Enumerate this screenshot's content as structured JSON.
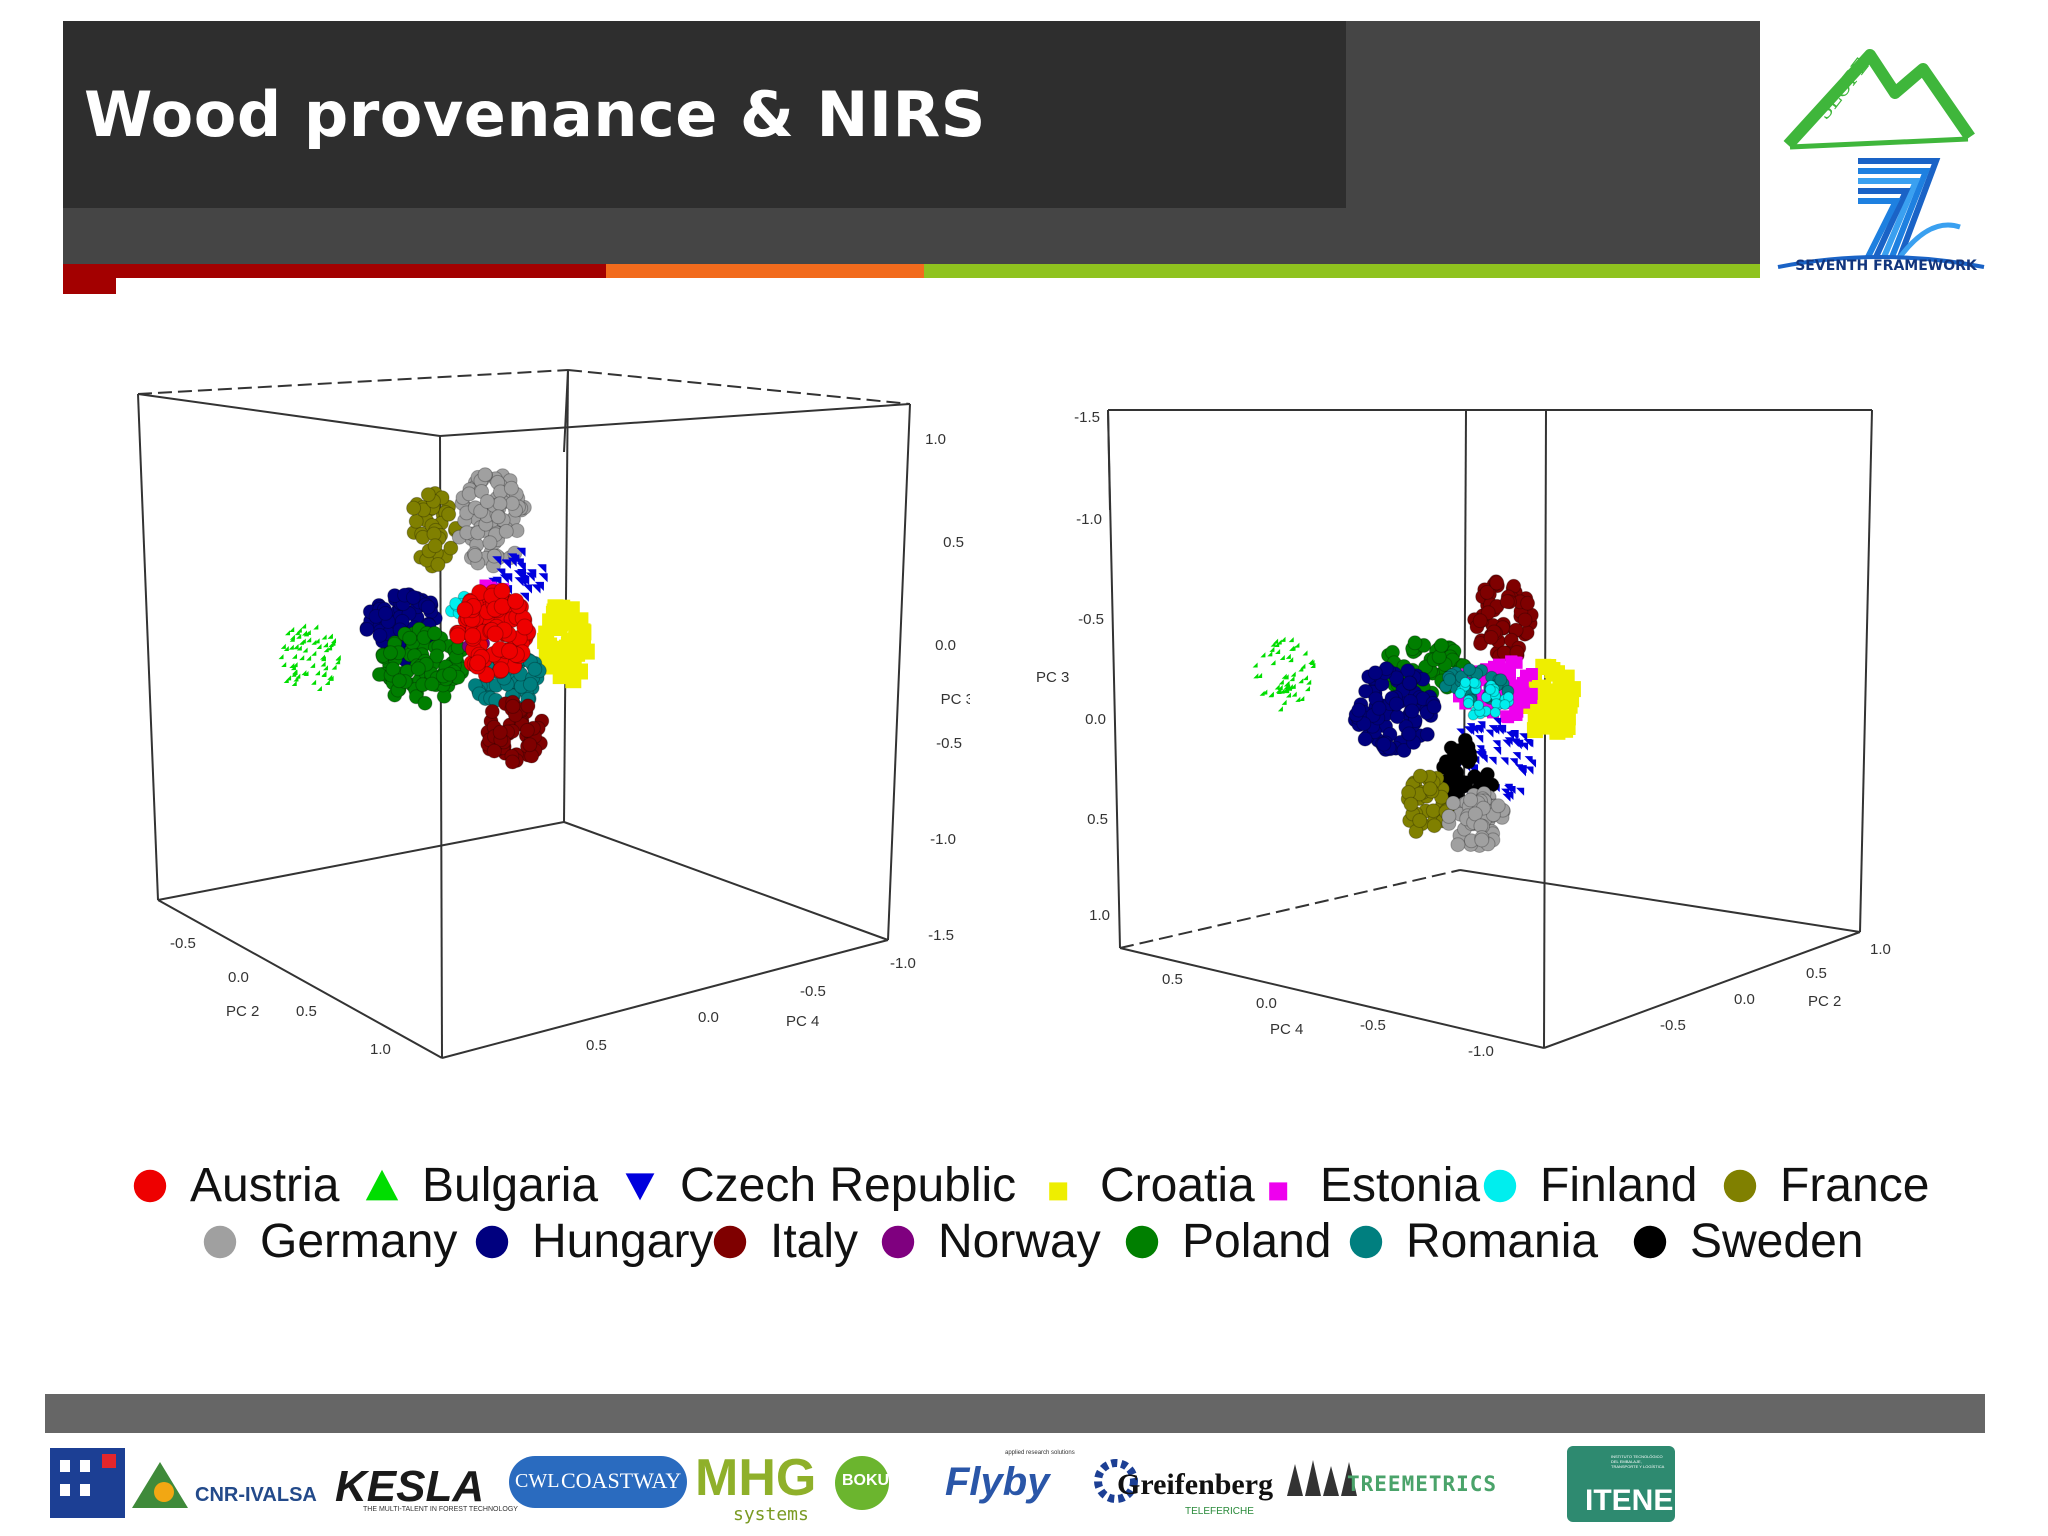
{
  "slide": {
    "title": "Wood provenance & NIRS"
  },
  "header": {
    "stripe_colors": [
      "#a30000",
      "#f26b1d",
      "#8fc31f"
    ],
    "logos": {
      "slope_text": "SLOPE",
      "fp7_text": "SEVENTH FRAMEWORK"
    }
  },
  "plot_left": {
    "axis_vertical": {
      "name": "PC 3",
      "ticks": [
        "1.0",
        "0.5",
        "0.0",
        "-0.5",
        "-1.0",
        "-1.5"
      ]
    },
    "axis_front": {
      "name": "PC 4",
      "ticks": [
        "-1.0",
        "-0.5",
        "0.0",
        "0.5"
      ]
    },
    "axis_side": {
      "name": "PC 2",
      "ticks": [
        "-0.5",
        "0.0",
        "0.5",
        "1.0"
      ]
    }
  },
  "plot_right": {
    "axis_vertical": {
      "name": "PC 3",
      "ticks": [
        "-1.5",
        "-1.0",
        "-0.5",
        "0.0",
        "0.5",
        "1.0"
      ]
    },
    "axis_front": {
      "name": "PC 4",
      "ticks": [
        "0.5",
        "0.0",
        "-0.5",
        "-1.0"
      ]
    },
    "axis_side": {
      "name": "PC 2",
      "ticks": [
        "1.0",
        "0.5",
        "0.0",
        "-0.5"
      ]
    }
  },
  "legend": {
    "row1": [
      {
        "label": "Austria",
        "marker": "circle",
        "color": "#ee0000"
      },
      {
        "label": "Bulgaria",
        "marker": "triangle-up",
        "color": "#00dd00"
      },
      {
        "label": "Czech Republic",
        "marker": "triangle-down",
        "color": "#0000dd"
      },
      {
        "label": "Croatia",
        "marker": "square-small",
        "color": "#eeee00"
      },
      {
        "label": "Estonia",
        "marker": "square-small",
        "color": "#ee00ee"
      },
      {
        "label": "Finland",
        "marker": "circle",
        "color": "#00eeee"
      },
      {
        "label": "France",
        "marker": "circle",
        "color": "#808000"
      }
    ],
    "row2": [
      {
        "label": "Germany",
        "marker": "circle",
        "color": "#a0a0a0"
      },
      {
        "label": "Hungary",
        "marker": "circle",
        "color": "#00007f"
      },
      {
        "label": "Italy",
        "marker": "circle",
        "color": "#7f0000"
      },
      {
        "label": "Norway",
        "marker": "circle",
        "color": "#7f007f"
      },
      {
        "label": "Poland",
        "marker": "circle",
        "color": "#007f00"
      },
      {
        "label": "Romania",
        "marker": "circle",
        "color": "#007f7f"
      },
      {
        "label": "Sweden",
        "marker": "circle",
        "color": "#000000"
      }
    ]
  },
  "footer": {
    "sponsors": [
      "CNR-IVALSA",
      "KESLA",
      "THE MULTI-TALENT IN FOREST TECHNOLOGY",
      "CWL",
      "COASTWAY",
      "MHG",
      "systems",
      "BOKU",
      "Flyby",
      "applied research solutions",
      "Greifenberg",
      "TELEFERICHE",
      "TREEMETRICS",
      "ITENE",
      "INSTITUTO TECNOLÓGICO DEL EMBALAJE, TRANSPORTE Y LOGÍSTICA"
    ]
  }
}
